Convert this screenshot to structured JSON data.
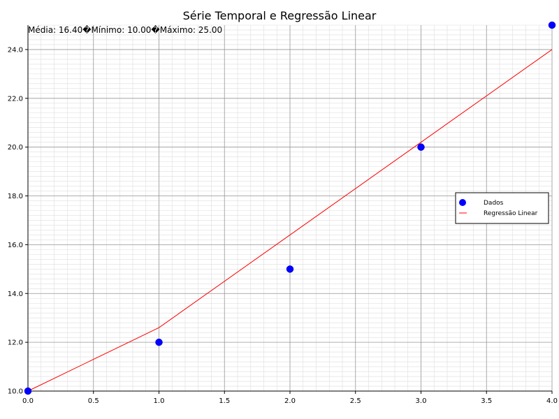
{
  "chart_data": {
    "type": "scatter",
    "title": "Série Temporal e Regressão Linear",
    "stats_text": "Média: 16.40�Mínimo: 10.00�Máximo: 25.00",
    "xlabel": "",
    "ylabel": "",
    "xlim": [
      0,
      4
    ],
    "ylim": [
      10,
      25
    ],
    "x_ticks": [
      0,
      0.5,
      1,
      1.5,
      2,
      2.5,
      3,
      3.5,
      4
    ],
    "x_tick_labels": [
      "0.0",
      "0.5",
      "1.0",
      "1.5",
      "2.0",
      "2.5",
      "3.0",
      "3.5",
      "4.0"
    ],
    "y_ticks": [
      10,
      12,
      14,
      16,
      18,
      20,
      22,
      24
    ],
    "y_tick_labels": [
      "10.0",
      "12.0",
      "14.0",
      "16.0",
      "18.0",
      "20.0",
      "22.0",
      "24.0"
    ],
    "grid": true,
    "legend_position": "center-right",
    "series": [
      {
        "name": "Dados",
        "kind": "scatter",
        "color": "#0000ff",
        "points": [
          {
            "x": 0,
            "y": 10
          },
          {
            "x": 1,
            "y": 12
          },
          {
            "x": 2,
            "y": 15
          },
          {
            "x": 3,
            "y": 20
          },
          {
            "x": 4,
            "y": 25
          }
        ]
      },
      {
        "name": "Regressão Linear",
        "kind": "line",
        "color": "#ff0000",
        "points": [
          {
            "x": 0,
            "y": 10
          },
          {
            "x": 1,
            "y": 12.6
          },
          {
            "x": 2,
            "y": 16.4
          },
          {
            "x": 3,
            "y": 20.2
          },
          {
            "x": 4,
            "y": 24
          }
        ]
      }
    ]
  }
}
